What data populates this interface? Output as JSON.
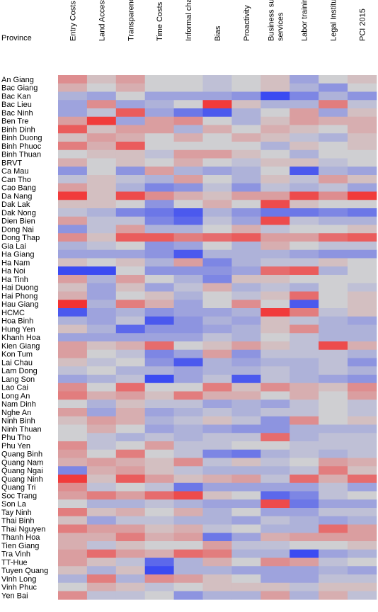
{
  "chart_data": {
    "type": "heatmap",
    "title": "",
    "ylabel": "Province",
    "xlabel": "",
    "columns": [
      "Entry Costs",
      "Land Access",
      "Transparency",
      "Time Costs",
      "Informal charges",
      "Bias",
      "Proactivity",
      "Business support services",
      "Labor training",
      "Legal Institutions",
      "PCI 2015"
    ],
    "colors": {
      "low": "#2a3cf5",
      "mid": "#cfcfd2",
      "high": "#f52a2a"
    },
    "value_range": [
      -1,
      1
    ],
    "rows": [
      {
        "province": "An Giang",
        "values": [
          0.4,
          0.1,
          0.3,
          0.0,
          0.0,
          -0.1,
          0.0,
          0.1,
          -0.3,
          0.0,
          0.1
        ]
      },
      {
        "province": "Bac Giang",
        "values": [
          0.2,
          0.0,
          0.2,
          0.0,
          0.0,
          -0.1,
          0.0,
          0.1,
          -0.2,
          -0.4,
          0.0
        ]
      },
      {
        "province": "Bac Kan",
        "values": [
          -0.2,
          -0.3,
          0.0,
          -0.3,
          -0.3,
          -0.3,
          -0.4,
          -0.9,
          -0.5,
          -0.2,
          -0.4
        ]
      },
      {
        "province": "Bac Lieu",
        "values": [
          -0.3,
          0.4,
          -0.3,
          -0.2,
          0.0,
          0.9,
          0.1,
          -0.2,
          -0.2,
          0.5,
          -0.1
        ]
      },
      {
        "province": "Bac Ninh",
        "values": [
          -0.3,
          -0.1,
          0.7,
          -0.3,
          -0.6,
          -0.8,
          -0.2,
          0.0,
          0.3,
          -0.3,
          0.1
        ]
      },
      {
        "province": "Ben Tre",
        "values": [
          0.3,
          0.9,
          -0.3,
          0.3,
          0.4,
          0.0,
          -0.2,
          0.1,
          0.3,
          0.2,
          0.2
        ]
      },
      {
        "province": "Binh Dinh",
        "values": [
          0.7,
          0.1,
          0.3,
          0.3,
          -0.2,
          0.2,
          0.0,
          0.2,
          0.1,
          0.0,
          0.2
        ]
      },
      {
        "province": "Binh Duong",
        "values": [
          0.1,
          0.3,
          0.2,
          0.0,
          0.2,
          0.0,
          0.2,
          0.1,
          -0.1,
          -0.2,
          0.1
        ]
      },
      {
        "province": "Binh Phuoc",
        "values": [
          0.5,
          0.2,
          0.7,
          0.0,
          0.0,
          0.0,
          0.0,
          -0.2,
          0.1,
          0.0,
          0.1
        ]
      },
      {
        "province": "Binh Thuan",
        "values": [
          0.0,
          0.1,
          0.1,
          -0.1,
          0.3,
          0.3,
          0.1,
          0.0,
          -0.2,
          0.0,
          0.0
        ]
      },
      {
        "province": "BRVT",
        "values": [
          0.2,
          0.0,
          0.1,
          0.0,
          0.2,
          0.0,
          -0.1,
          0.1,
          0.1,
          -0.1,
          0.0
        ]
      },
      {
        "province": "Ca Mau",
        "values": [
          -0.4,
          0.0,
          -0.4,
          0.3,
          -0.2,
          -0.3,
          -0.2,
          0.0,
          -0.8,
          -0.2,
          -0.3
        ]
      },
      {
        "province": "Can Tho",
        "values": [
          -0.1,
          0.1,
          -0.1,
          -0.2,
          0.3,
          0.0,
          -0.2,
          0.1,
          -0.1,
          0.3,
          0.1
        ]
      },
      {
        "province": "Cao Bang",
        "values": [
          0.3,
          0.1,
          -0.2,
          -0.5,
          -0.4,
          -0.1,
          -0.4,
          -0.1,
          -0.2,
          -0.1,
          -0.3
        ]
      },
      {
        "province": "Da Nang",
        "values": [
          0.9,
          0.1,
          0.8,
          0.4,
          0.2,
          0.1,
          0.3,
          0.3,
          0.8,
          0.4,
          0.9
        ]
      },
      {
        "province": "Dak Lak",
        "values": [
          0.1,
          0.1,
          0.0,
          -0.4,
          0.0,
          0.2,
          0.0,
          0.8,
          0.1,
          0.0,
          0.0
        ]
      },
      {
        "province": "Dak Nong",
        "values": [
          -0.1,
          -0.2,
          -0.5,
          -0.6,
          -0.8,
          -0.2,
          -0.4,
          -0.6,
          -0.6,
          -0.5,
          -0.6
        ]
      },
      {
        "province": "Dien Bien",
        "values": [
          0.3,
          -0.1,
          -0.1,
          -0.5,
          -0.7,
          -0.1,
          -0.3,
          0.8,
          -0.1,
          -0.2,
          -0.2
        ]
      },
      {
        "province": "Dong Nai",
        "values": [
          -0.4,
          -0.1,
          0.3,
          -0.2,
          -0.2,
          0.0,
          0.2,
          -0.1,
          0.0,
          0.0,
          0.1
        ]
      },
      {
        "province": "Dong Thap",
        "values": [
          0.4,
          0.1,
          0.7,
          0.7,
          0.5,
          0.6,
          0.7,
          0.3,
          0.3,
          0.6,
          0.7
        ]
      },
      {
        "province": "Gia Lai",
        "values": [
          -0.2,
          -0.1,
          0.0,
          -0.4,
          -0.3,
          0.0,
          -0.2,
          0.2,
          0.0,
          -0.1,
          -0.1
        ]
      },
      {
        "province": "Ha Giang",
        "values": [
          -0.3,
          -0.3,
          -0.3,
          -0.4,
          -0.8,
          -0.2,
          -0.2,
          -0.2,
          -0.3,
          -0.4,
          -0.4
        ]
      },
      {
        "province": "Ha Nam",
        "values": [
          0.1,
          0.0,
          0.1,
          -0.2,
          0.3,
          -0.5,
          -0.2,
          -0.1,
          -0.1,
          0.1,
          0.0
        ]
      },
      {
        "province": "Ha Noi",
        "values": [
          -0.9,
          -0.9,
          0.0,
          -0.4,
          -0.4,
          -0.4,
          -0.3,
          0.6,
          0.7,
          -0.2,
          0.0
        ]
      },
      {
        "province": "Ha Tinh",
        "values": [
          0.3,
          -0.2,
          0.3,
          0.0,
          -0.2,
          -0.5,
          0.1,
          0.1,
          0.0,
          0.0,
          0.0
        ]
      },
      {
        "province": "Hai Duong",
        "values": [
          0.1,
          -0.3,
          0.1,
          -0.3,
          -0.1,
          0.2,
          -0.2,
          -0.1,
          -0.2,
          0.0,
          -0.1
        ]
      },
      {
        "province": "Hai Phong",
        "values": [
          0.2,
          -0.3,
          0.0,
          0.1,
          -0.2,
          0.0,
          -0.1,
          0.1,
          0.6,
          0.0,
          0.1
        ]
      },
      {
        "province": "Hau Giang",
        "values": [
          0.95,
          -0.2,
          0.5,
          0.2,
          -0.3,
          0.0,
          0.4,
          0.0,
          -0.8,
          0.0,
          0.1
        ]
      },
      {
        "province": "HCMC",
        "values": [
          -0.8,
          -0.3,
          -0.2,
          -0.4,
          -0.3,
          -0.3,
          -0.2,
          0.9,
          0.5,
          -0.1,
          0.1
        ]
      },
      {
        "province": "Hoa Binh",
        "values": [
          -0.2,
          -0.3,
          -0.1,
          -0.8,
          -0.4,
          -0.2,
          -0.3,
          0.1,
          -0.1,
          -0.2,
          -0.3
        ]
      },
      {
        "province": "Hung Yen",
        "values": [
          0.1,
          -0.2,
          -0.7,
          -0.4,
          -0.4,
          -0.3,
          -0.2,
          0.1,
          0.4,
          -0.2,
          -0.2
        ]
      },
      {
        "province": "Khanh Hoa",
        "values": [
          -0.3,
          -0.3,
          -0.3,
          -0.3,
          -0.3,
          -0.1,
          -0.2,
          0.0,
          -0.1,
          -0.2,
          -0.2
        ]
      },
      {
        "province": "Kien Giang",
        "values": [
          0.3,
          0.1,
          0.2,
          0.6,
          0.0,
          0.1,
          0.3,
          0.1,
          -0.1,
          0.8,
          0.2
        ]
      },
      {
        "province": "Kon Tum",
        "values": [
          0.3,
          0.0,
          -0.1,
          -0.5,
          -0.3,
          0.3,
          -0.4,
          -0.1,
          -0.1,
          -0.1,
          -0.2
        ]
      },
      {
        "province": "Lai Chau",
        "values": [
          0.1,
          -0.1,
          0.0,
          -0.4,
          -0.8,
          -0.2,
          -0.3,
          -0.2,
          -0.2,
          -0.1,
          -0.4
        ]
      },
      {
        "province": "Lam Dong",
        "values": [
          -0.1,
          0.0,
          -0.2,
          -0.2,
          -0.3,
          -0.2,
          -0.2,
          -0.1,
          -0.2,
          -0.1,
          -0.2
        ]
      },
      {
        "province": "Lang Son",
        "values": [
          -0.3,
          -0.2,
          -0.1,
          -0.9,
          -0.3,
          -0.1,
          -0.8,
          -0.1,
          -0.2,
          -0.3,
          -0.4
        ]
      },
      {
        "province": "Lao Cai",
        "values": [
          0.4,
          0.0,
          0.6,
          0.0,
          0.0,
          0.5,
          0.1,
          0.4,
          0.2,
          0.1,
          0.4
        ]
      },
      {
        "province": "Long An",
        "values": [
          0.5,
          0.2,
          0.3,
          0.1,
          0.5,
          0.2,
          0.2,
          0.0,
          0.2,
          0.0,
          0.3
        ]
      },
      {
        "province": "Nam Dinh",
        "values": [
          0.0,
          -0.2,
          0.1,
          -0.1,
          -0.1,
          -0.3,
          -0.2,
          -0.3,
          -0.1,
          0.0,
          -0.1
        ]
      },
      {
        "province": "Nghe An",
        "values": [
          0.3,
          -0.3,
          0.2,
          -0.3,
          -0.2,
          -0.1,
          -0.2,
          -0.1,
          -0.1,
          0.0,
          -0.1
        ]
      },
      {
        "province": "Ninh Binh",
        "values": [
          0.1,
          0.3,
          0.2,
          -0.2,
          -0.1,
          0.1,
          -0.1,
          -0.4,
          0.4,
          0.0,
          0.1
        ]
      },
      {
        "province": "Ninh Thuan",
        "values": [
          0.0,
          0.2,
          0.0,
          -0.3,
          -0.2,
          -0.3,
          -0.4,
          -0.4,
          -0.2,
          -0.2,
          -0.2
        ]
      },
      {
        "province": "Phu Tho",
        "values": [
          0.0,
          -0.1,
          -0.2,
          -0.1,
          -0.2,
          -0.1,
          -0.1,
          0.6,
          -0.2,
          -0.1,
          -0.1
        ]
      },
      {
        "province": "Phu Yen",
        "values": [
          0.4,
          -0.1,
          0.0,
          0.3,
          -0.1,
          -0.1,
          0.0,
          0.0,
          -0.1,
          -0.1,
          -0.1
        ]
      },
      {
        "province": "Quang Binh",
        "values": [
          0.3,
          0.0,
          0.5,
          0.0,
          -0.1,
          -0.5,
          -0.6,
          -0.2,
          -0.1,
          -0.2,
          -0.1
        ]
      },
      {
        "province": "Quang Nam",
        "values": [
          0.2,
          0.3,
          0.2,
          0.1,
          0.4,
          -0.1,
          0.1,
          -0.1,
          0.0,
          0.3,
          0.2
        ]
      },
      {
        "province": "Quang Ngai",
        "values": [
          -0.5,
          0.2,
          0.3,
          0.1,
          -0.1,
          -0.2,
          -0.2,
          -0.2,
          -0.1,
          0.5,
          0.1
        ]
      },
      {
        "province": "Quang Ninh",
        "values": [
          0.9,
          0.1,
          0.7,
          0.3,
          0.1,
          0.2,
          0.3,
          -0.1,
          0.6,
          0.2,
          0.6
        ]
      },
      {
        "province": "Quang Tri",
        "values": [
          0.4,
          -0.1,
          0.0,
          -0.1,
          -0.6,
          -0.3,
          -0.3,
          -0.3,
          -0.3,
          -0.1,
          -0.3
        ]
      },
      {
        "province": "Soc Trang",
        "values": [
          0.3,
          0.5,
          0.3,
          0.6,
          0.8,
          0.1,
          0.0,
          -0.7,
          -0.5,
          -0.1,
          0.0
        ]
      },
      {
        "province": "Son La",
        "values": [
          0.0,
          -0.2,
          -0.2,
          -0.1,
          -0.2,
          -0.3,
          -0.3,
          0.8,
          -0.6,
          -0.3,
          -0.3
        ]
      },
      {
        "province": "Tay Ninh",
        "values": [
          0.5,
          0.1,
          0.2,
          0.0,
          0.2,
          -0.2,
          0.0,
          -0.3,
          -0.3,
          -0.1,
          -0.1
        ]
      },
      {
        "province": "Thai Binh",
        "values": [
          0.1,
          -0.3,
          -0.1,
          -0.1,
          -0.2,
          -0.2,
          -0.3,
          -0.1,
          -0.2,
          -0.3,
          -0.2
        ]
      },
      {
        "province": "Thai Nguyen",
        "values": [
          0.5,
          0.3,
          0.3,
          0.1,
          0.2,
          -0.1,
          0.0,
          -0.2,
          -0.2,
          0.6,
          0.3
        ]
      },
      {
        "province": "Thanh Hoa",
        "values": [
          0.2,
          0.2,
          0.5,
          0.2,
          0.3,
          -0.6,
          -0.3,
          0.2,
          0.3,
          0.3,
          0.3
        ]
      },
      {
        "province": "Tien Giang",
        "values": [
          0.2,
          -0.1,
          0.1,
          0.0,
          0.0,
          0.3,
          -0.1,
          -0.1,
          0.0,
          0.0,
          0.1
        ]
      },
      {
        "province": "Tra Vinh",
        "values": [
          0.3,
          0.6,
          0.3,
          0.2,
          0.6,
          0.5,
          -0.2,
          -0.2,
          -0.9,
          -0.3,
          -0.2
        ]
      },
      {
        "province": "TT-Hue",
        "values": [
          0.3,
          0.1,
          -0.1,
          -0.7,
          -0.2,
          0.2,
          0.0,
          0.4,
          0.3,
          -0.1,
          0.0
        ]
      },
      {
        "province": "Tuyen Quang",
        "values": [
          0.1,
          -0.2,
          0.1,
          -0.9,
          -0.2,
          -0.2,
          -0.3,
          -0.3,
          -0.3,
          -0.2,
          -0.3
        ]
      },
      {
        "province": "Vinh Long",
        "values": [
          -0.2,
          0.5,
          -0.2,
          0.4,
          0.3,
          0.1,
          0.0,
          -0.3,
          -0.3,
          -0.1,
          -0.1
        ]
      },
      {
        "province": "Vinh Phuc",
        "values": [
          0.0,
          0.2,
          0.1,
          -0.1,
          0.0,
          0.1,
          0.1,
          0.1,
          -0.1,
          0.1,
          0.1
        ]
      },
      {
        "province": "Yen Bai",
        "values": [
          0.4,
          -0.1,
          -0.1,
          0.0,
          -0.4,
          -0.2,
          -0.2,
          0.3,
          -0.2,
          0.2,
          -0.1
        ]
      }
    ]
  }
}
